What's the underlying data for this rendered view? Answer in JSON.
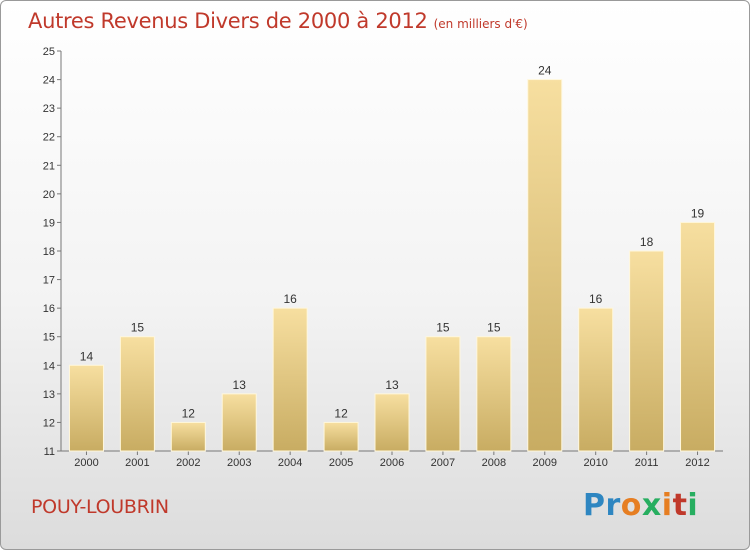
{
  "header": {
    "title": "Autres Revenus Divers de 2000 à 2012",
    "unit": "(en milliers d'€)"
  },
  "footer": {
    "commune": "POUY-LOUBRIN",
    "logo": {
      "letters": [
        "P",
        "r",
        "o",
        "x",
        "i",
        "t",
        "i"
      ],
      "colors": [
        "#2e86c1",
        "#2e86c1",
        "#e67e22",
        "#27ae60",
        "#e67e22",
        "#c0392b",
        "#27ae60"
      ]
    }
  },
  "colors": {
    "title": "#c0392b",
    "bar_light": "#f7dfa0",
    "bar_dark": "#c8ac62"
  },
  "chart_data": {
    "type": "bar",
    "categories": [
      "2000",
      "2001",
      "2002",
      "2003",
      "2004",
      "2005",
      "2006",
      "2007",
      "2008",
      "2009",
      "2010",
      "2011",
      "2012"
    ],
    "values": [
      14,
      15,
      12,
      13,
      16,
      12,
      13,
      15,
      15,
      24,
      16,
      18,
      19
    ],
    "ylim": [
      11,
      25
    ],
    "yticks": [
      11,
      12,
      13,
      14,
      15,
      16,
      17,
      18,
      19,
      20,
      21,
      22,
      23,
      24,
      25
    ],
    "grid": false,
    "legend": "none"
  }
}
